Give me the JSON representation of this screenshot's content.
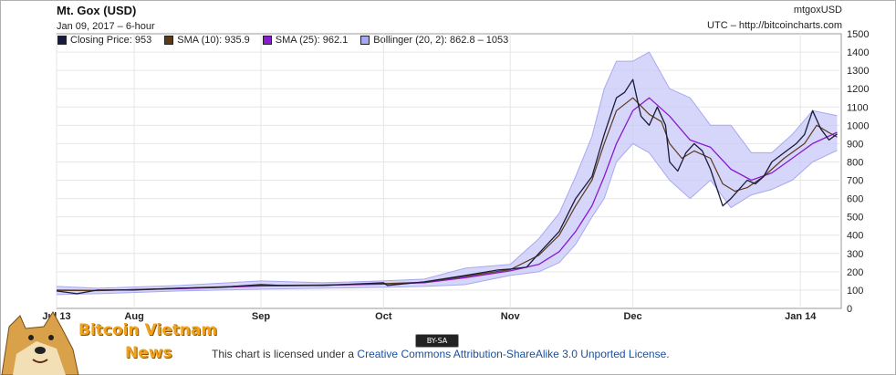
{
  "header": {
    "title": "Mt. Gox (USD)",
    "subtitle": "Jan 09, 2017 – 6-hour",
    "symbol": "mtgoxUSD",
    "source": "UTC – http://bitcoincharts.com"
  },
  "legend": [
    {
      "label": "Closing Price: 953",
      "color": "#1a1a3a"
    },
    {
      "label": "SMA (10): 935.9",
      "color": "#5a3a1a"
    },
    {
      "label": "SMA (25): 962.1",
      "color": "#8a1ad0"
    },
    {
      "label": "Bollinger (20, 2): 862.8 – 1053",
      "color": "#a8a8f0"
    }
  ],
  "license": {
    "badge": "BY-SA",
    "prefix": "This chart is licensed under a",
    "link": "Creative Commons Attribution-ShareAlike 3.0 Unported License."
  },
  "brand": {
    "line1": "Bitcoin Vietnam",
    "line2": "News",
    "icon": "doge-dog-icon"
  },
  "chart_data": {
    "type": "line",
    "title": "Mt. Gox (USD)",
    "x_labels": [
      "Jul 13",
      "Aug",
      "Sep",
      "Oct",
      "Nov",
      "Dec",
      "Jan 14"
    ],
    "x_label_days": [
      0,
      19,
      50,
      80,
      111,
      141,
      182
    ],
    "x_range_days": [
      0,
      192
    ],
    "ylim": [
      0,
      1500
    ],
    "y_ticks": [
      0,
      100,
      200,
      300,
      400,
      500,
      600,
      700,
      800,
      900,
      1000,
      1100,
      1200,
      1300,
      1400,
      1500
    ],
    "grid": true,
    "legend_position": "top-left",
    "series": [
      {
        "name": "Closing Price",
        "color": "#1a1a3a",
        "x": [
          0,
          5,
          10,
          19,
          30,
          40,
          50,
          55,
          65,
          75,
          80,
          81,
          90,
          100,
          108,
          111,
          115,
          118,
          123,
          127,
          131,
          134,
          137,
          139,
          141,
          142,
          143,
          145,
          147,
          148,
          149,
          150,
          152,
          154,
          156,
          158,
          160,
          163,
          165,
          167,
          169,
          171,
          173,
          175,
          178,
          181,
          183,
          185,
          187,
          189,
          191
        ],
        "y": [
          95,
          80,
          100,
          100,
          110,
          115,
          130,
          125,
          125,
          135,
          140,
          125,
          145,
          180,
          210,
          215,
          225,
          300,
          420,
          600,
          720,
          950,
          1150,
          1180,
          1250,
          1150,
          1050,
          1000,
          1100,
          1050,
          1000,
          800,
          750,
          850,
          900,
          860,
          760,
          560,
          600,
          650,
          700,
          680,
          720,
          800,
          850,
          900,
          950,
          1080,
          980,
          920,
          953
        ]
      },
      {
        "name": "SMA (10)",
        "color": "#5a3a1a",
        "x": [
          0,
          10,
          30,
          50,
          65,
          80,
          90,
          100,
          111,
          118,
          123,
          127,
          131,
          134,
          137,
          141,
          145,
          148,
          150,
          153,
          156,
          160,
          163,
          166,
          169,
          173,
          178,
          183,
          186,
          189,
          191
        ],
        "y": [
          98,
          97,
          110,
          125,
          128,
          135,
          143,
          175,
          212,
          290,
          400,
          560,
          700,
          900,
          1080,
          1150,
          1060,
          1020,
          900,
          820,
          860,
          820,
          680,
          640,
          660,
          720,
          820,
          900,
          1000,
          960,
          936
        ]
      },
      {
        "name": "SMA (25)",
        "color": "#8a1ad0",
        "x": [
          0,
          10,
          30,
          50,
          65,
          80,
          90,
          100,
          111,
          118,
          123,
          127,
          131,
          134,
          137,
          141,
          145,
          150,
          155,
          160,
          165,
          170,
          175,
          180,
          185,
          191
        ],
        "y": [
          100,
          98,
          108,
          122,
          126,
          133,
          140,
          168,
          205,
          240,
          310,
          420,
          560,
          720,
          900,
          1080,
          1150,
          1050,
          920,
          880,
          760,
          700,
          740,
          820,
          900,
          962
        ]
      },
      {
        "name": "Bollinger Upper",
        "color": "#a8a8f0",
        "x": [
          0,
          10,
          30,
          50,
          65,
          80,
          90,
          100,
          111,
          118,
          123,
          127,
          131,
          134,
          137,
          141,
          145,
          150,
          155,
          160,
          165,
          170,
          175,
          180,
          185,
          191
        ],
        "y": [
          120,
          110,
          125,
          150,
          140,
          150,
          160,
          220,
          240,
          380,
          520,
          720,
          940,
          1200,
          1350,
          1350,
          1400,
          1200,
          1150,
          1000,
          1000,
          850,
          850,
          950,
          1080,
          1053
        ]
      },
      {
        "name": "Bollinger Lower",
        "color": "#a8a8f0",
        "x": [
          0,
          10,
          30,
          50,
          65,
          80,
          90,
          100,
          111,
          118,
          123,
          127,
          131,
          134,
          137,
          141,
          145,
          150,
          155,
          160,
          165,
          170,
          175,
          180,
          185,
          191
        ],
        "y": [
          75,
          80,
          95,
          105,
          110,
          115,
          120,
          130,
          180,
          200,
          250,
          350,
          500,
          600,
          800,
          900,
          850,
          700,
          600,
          700,
          550,
          620,
          650,
          700,
          800,
          863
        ]
      }
    ]
  }
}
